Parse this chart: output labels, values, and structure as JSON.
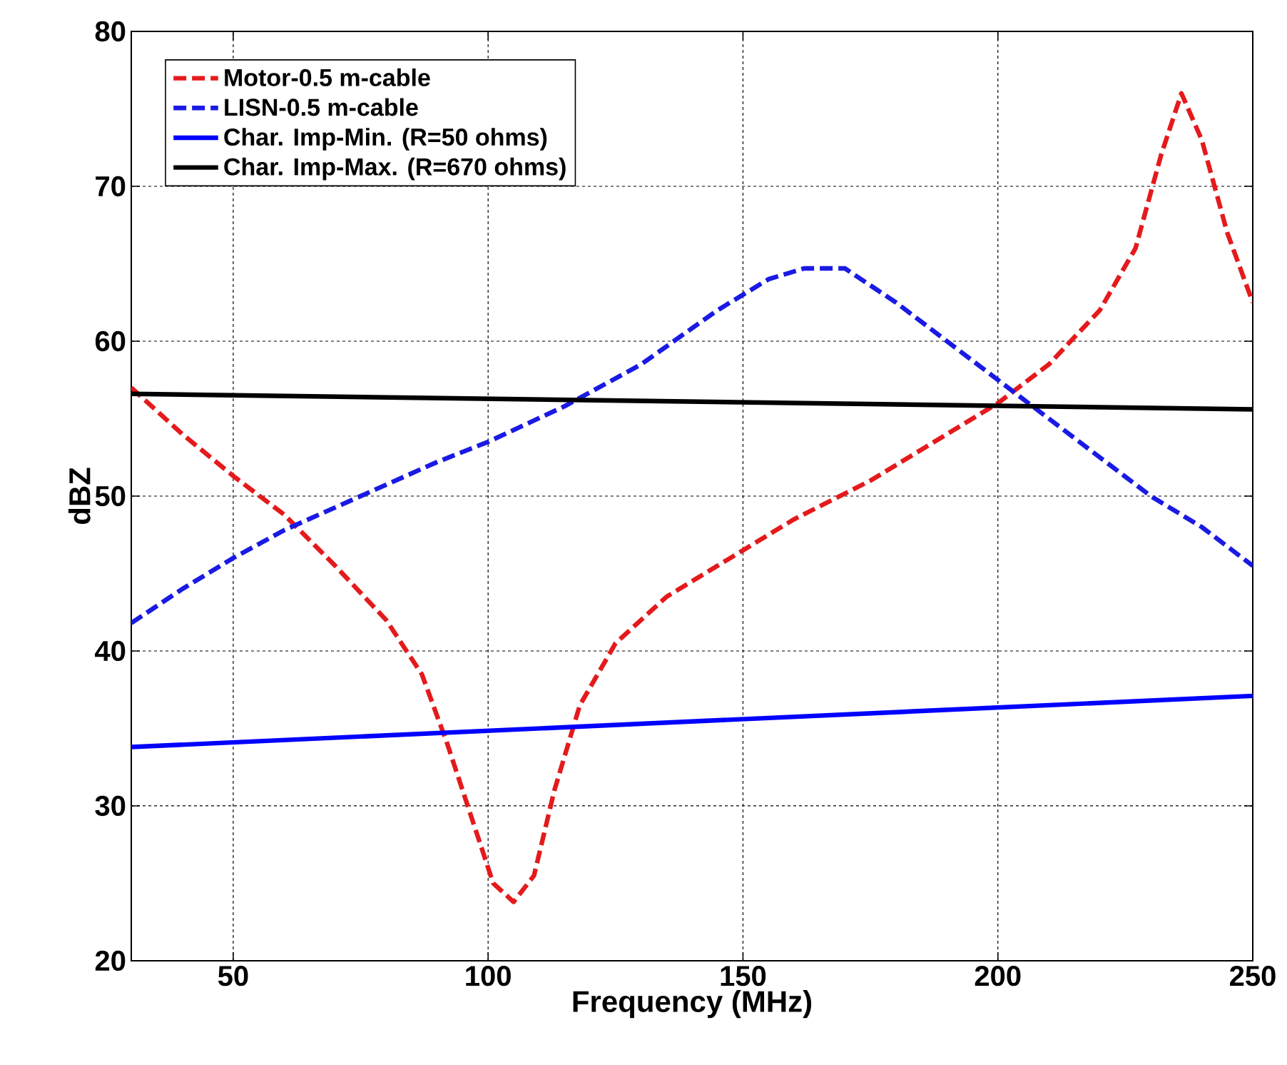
{
  "chart_data": {
    "type": "line",
    "xlabel": "Frequency (MHz)",
    "ylabel": "dBZ",
    "xlim": [
      30,
      250
    ],
    "ylim": [
      20,
      80
    ],
    "xticks": [
      50,
      100,
      150,
      200,
      250
    ],
    "yticks": [
      20,
      30,
      40,
      50,
      60,
      70,
      80
    ],
    "grid": true,
    "legend": "top left",
    "series": [
      {
        "name": "Motor-0.5 m-cable",
        "color": "#e41a1c",
        "line_style": "dashed",
        "x": [
          30,
          40,
          50,
          60,
          70,
          80,
          87,
          92,
          97,
          101,
          105,
          109,
          113,
          118,
          125,
          135,
          150,
          160,
          175,
          190,
          200,
          210,
          220,
          227,
          232,
          236,
          240,
          245,
          250
        ],
        "values": [
          57,
          54,
          51.3,
          48.8,
          45.5,
          42,
          38.5,
          34,
          29,
          25,
          23.8,
          25.5,
          31,
          36.5,
          40.5,
          43.5,
          46.5,
          48.5,
          51,
          54,
          56,
          58.5,
          62,
          66,
          72,
          76,
          73,
          67,
          62.5
        ]
      },
      {
        "name": "LISN-0.5 m-cable",
        "color": "#1a1ae4",
        "line_style": "dashed",
        "x": [
          30,
          40,
          50,
          60,
          75,
          90,
          100,
          115,
          130,
          145,
          155,
          162,
          170,
          180,
          190,
          200,
          210,
          220,
          230,
          240,
          250
        ],
        "values": [
          41.8,
          44,
          46,
          47.8,
          50,
          52.2,
          53.5,
          55.8,
          58.5,
          62,
          64,
          64.7,
          64.7,
          62.5,
          60,
          57.5,
          55,
          52.5,
          50,
          48,
          45.5
        ]
      },
      {
        "name": "Char. Imp-Min. (R=50 ohms)",
        "color": "#0000ff",
        "line_style": "solid",
        "x": [
          30,
          250
        ],
        "values": [
          33.8,
          37.1
        ]
      },
      {
        "name": "Char. Imp-Max. (R=670 ohms)",
        "color": "#000000",
        "line_style": "solid",
        "x": [
          30,
          250
        ],
        "values": [
          56.6,
          55.6
        ]
      }
    ]
  }
}
